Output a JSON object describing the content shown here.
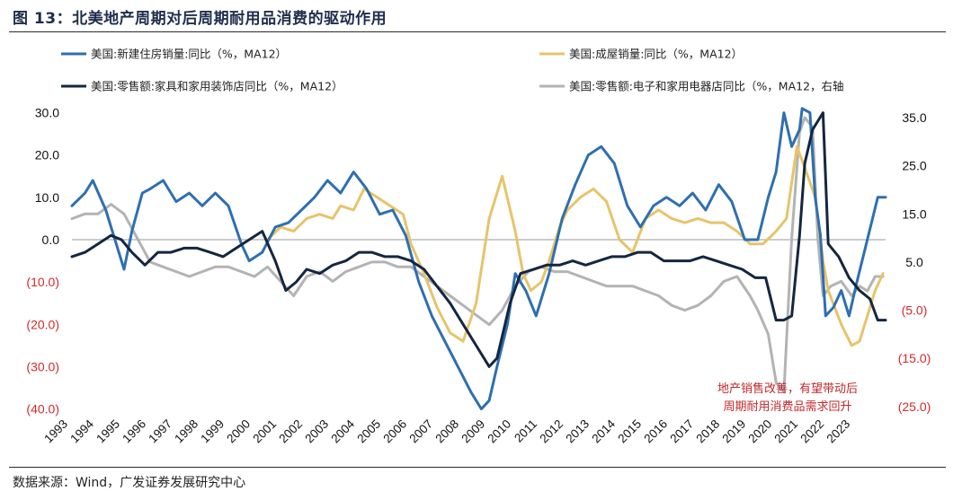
{
  "figure": {
    "title": "图 13：北美地产周期对后周期耐用品消费的驱动作用",
    "source": "数据来源：Wind，广发证券发展研究中心"
  },
  "chart_data": {
    "type": "line",
    "legend": [
      {
        "name": "美国:新建住房销量:同比（%，MA12）",
        "color": "#2e6fb0"
      },
      {
        "name": "美国:成屋销量:同比（%，MA12）",
        "color": "#e6c46a"
      },
      {
        "name": "美国:零售额:家具和家用装饰店同比（%，MA12）",
        "color": "#142640"
      },
      {
        "name": "美国:零售额:电子和家用电器店同比（%，MA12，右轴",
        "color": "#b3b3b3"
      }
    ],
    "left_axis": {
      "range": [
        -40,
        30
      ],
      "ticks": [
        30,
        20,
        10,
        0,
        -10,
        -20,
        -30,
        -40
      ],
      "labels": [
        "30.0",
        "20.0",
        "10.0",
        "0.0",
        "(10.0)",
        "(20.0)",
        "(30.0)",
        "(40.0)"
      ],
      "negative_color": "#d42a2a"
    },
    "right_axis": {
      "range": [
        -25,
        35
      ],
      "ticks": [
        35,
        25,
        15,
        5,
        -5,
        -15,
        -25
      ],
      "labels": [
        "35.0",
        "25.0",
        "15.0",
        "5.0",
        "(5.0)",
        "(15.0)",
        "(25.0)"
      ],
      "negative_color": "#d42a2a"
    },
    "x_range": [
      1993,
      2024.2
    ],
    "x_tick_labels": [
      "1993",
      "1994",
      "1995",
      "1996",
      "1997",
      "1998",
      "1999",
      "2000",
      "2001",
      "2002",
      "2003",
      "2004",
      "2005",
      "2006",
      "2007",
      "2008",
      "2009",
      "2010",
      "2011",
      "2012",
      "2013",
      "2014",
      "2015",
      "2016",
      "2017",
      "2018",
      "2019",
      "2020",
      "2021",
      "2022",
      "2023"
    ],
    "annotation": [
      "地产销售改善，有望带动后",
      "周期耐用消费品需求回升"
    ],
    "series": [
      {
        "name": "美国:新建住房销量:同比（%，MA12）",
        "axis": "left",
        "color": "#2e6fb0",
        "x": [
          1993.0,
          1993.5,
          1993.8,
          1994.3,
          1994.7,
          1995.0,
          1995.3,
          1995.7,
          1996.0,
          1996.5,
          1997.0,
          1997.5,
          1998.0,
          1998.5,
          1999.0,
          1999.5,
          1999.8,
          2000.3,
          2000.8,
          2001.3,
          2001.8,
          2002.3,
          2002.8,
          2003.3,
          2003.8,
          2004.3,
          2004.8,
          2005.3,
          2005.8,
          2006.3,
          2006.8,
          2007.3,
          2007.8,
          2008.3,
          2008.7,
          2009.0,
          2009.3,
          2009.7,
          2010.0,
          2010.4,
          2010.8,
          2011.3,
          2011.8,
          2012.3,
          2012.8,
          2013.3,
          2013.8,
          2014.3,
          2014.8,
          2015.3,
          2015.8,
          2016.3,
          2016.8,
          2017.3,
          2017.8,
          2018.3,
          2018.8,
          2019.3,
          2019.7,
          2020.0,
          2020.3,
          2020.6,
          2020.9,
          2021.0,
          2021.3,
          2021.5,
          2021.7,
          2021.9,
          2022.2,
          2022.5,
          2022.8,
          2023.1,
          2023.5,
          2023.9,
          2024.2
        ],
        "values": [
          8,
          11,
          14,
          7,
          -1,
          -7,
          2,
          11,
          12,
          14,
          9,
          11,
          8,
          11,
          8,
          -1,
          -5,
          -3,
          3,
          4,
          7,
          10,
          14,
          11,
          16,
          12,
          6,
          7,
          1,
          -10,
          -18,
          -24,
          -30,
          -36,
          -40,
          -38,
          -30,
          -20,
          -8,
          -12,
          -18,
          -8,
          5,
          13,
          20,
          22,
          18,
          8,
          3,
          8,
          10,
          8,
          11,
          7,
          13,
          9,
          0,
          0,
          10,
          16,
          30,
          22,
          26,
          31,
          30,
          10,
          1,
          -18,
          -16,
          -12,
          -18,
          -10,
          0,
          10,
          10
        ]
      },
      {
        "name": "美国:成屋销量:同比（%，MA12）",
        "axis": "left",
        "color": "#e6c46a",
        "x": [
          2000.5,
          2001.0,
          2001.5,
          2002.0,
          2002.5,
          2003.0,
          2003.3,
          2003.8,
          2004.2,
          2004.7,
          2005.2,
          2005.7,
          2006.0,
          2006.5,
          2007.0,
          2007.5,
          2008.0,
          2008.5,
          2009.0,
          2009.5,
          2010.0,
          2010.3,
          2010.6,
          2011.0,
          2011.3,
          2011.7,
          2012.0,
          2012.5,
          2013.0,
          2013.5,
          2014.0,
          2014.5,
          2015.0,
          2015.5,
          2016.0,
          2016.5,
          2017.0,
          2017.5,
          2018.0,
          2018.5,
          2019.0,
          2019.5,
          2020.0,
          2020.4,
          2020.8,
          2021.1,
          2021.5,
          2021.8,
          2022.0,
          2022.5,
          2022.9,
          2023.2,
          2023.5,
          2023.8,
          2024.1
        ],
        "values": [
          0,
          3,
          2,
          5,
          6,
          5,
          8,
          7,
          12,
          10,
          8,
          6,
          -1,
          -8,
          -16,
          -22,
          -24,
          -15,
          5,
          15,
          2,
          -8,
          -12,
          -10,
          -5,
          3,
          7,
          10,
          12,
          9,
          0,
          -3,
          5,
          7,
          5,
          4,
          5,
          4,
          4,
          2,
          -1,
          -1,
          2,
          5,
          22,
          17,
          10,
          -5,
          -12,
          -20,
          -25,
          -24,
          -18,
          -12,
          -8
        ]
      },
      {
        "name": "美国:零售额:家具和家用装饰店同比（%，MA12）",
        "axis": "left",
        "color": "#142640",
        "x": [
          1993.0,
          1993.5,
          1994.0,
          1994.5,
          1994.9,
          1995.3,
          1995.8,
          1996.3,
          1996.8,
          1997.3,
          1997.8,
          1998.3,
          1998.8,
          1999.3,
          1999.8,
          2000.3,
          2000.8,
          2001.2,
          2001.6,
          2002.0,
          2002.5,
          2003.0,
          2003.5,
          2004.0,
          2004.5,
          2005.0,
          2005.5,
          2006.0,
          2006.5,
          2007.0,
          2007.5,
          2008.0,
          2008.5,
          2009.0,
          2009.3,
          2009.8,
          2010.2,
          2010.7,
          2011.2,
          2011.7,
          2012.2,
          2012.7,
          2013.2,
          2013.7,
          2014.2,
          2014.7,
          2015.2,
          2015.7,
          2016.2,
          2016.7,
          2017.2,
          2017.7,
          2018.2,
          2018.7,
          2019.2,
          2019.6,
          2020.0,
          2020.3,
          2020.6,
          2020.9,
          2021.1,
          2021.4,
          2021.6,
          2021.8,
          2022.0,
          2022.4,
          2022.8,
          2023.2,
          2023.6,
          2023.9,
          2024.2
        ],
        "values": [
          -4,
          -3,
          -1,
          1,
          0,
          -3,
          -6,
          -3,
          -3,
          -2,
          -2,
          -3,
          -4,
          -2,
          0,
          2,
          -5,
          -12,
          -10,
          -7,
          -8,
          -6,
          -5,
          -3,
          -3,
          -4,
          -4,
          -5,
          -7,
          -11,
          -15,
          -20,
          -25,
          -30,
          -28,
          -15,
          -8,
          -7,
          -6,
          -6,
          -5,
          -6,
          -5,
          -4,
          -4,
          -3,
          -3,
          -5,
          -5,
          -5,
          -4,
          -5,
          -6,
          -7,
          -9,
          -9,
          -19,
          -19,
          -18,
          1,
          18,
          26,
          28,
          30,
          -1,
          -4,
          -9,
          -12,
          -14,
          -19,
          -19
        ]
      },
      {
        "name": "美国:零售额:电子和家用电器店同比（%，MA12，右轴",
        "axis": "right",
        "color": "#b3b3b3",
        "x": [
          1993.0,
          1993.5,
          1994.0,
          1994.5,
          1995.0,
          1995.5,
          1996.0,
          1996.5,
          1997.0,
          1997.5,
          1998.0,
          1998.5,
          1999.0,
          1999.5,
          2000.0,
          2000.5,
          2001.0,
          2001.5,
          2002.0,
          2002.5,
          2003.0,
          2003.5,
          2004.0,
          2004.5,
          2005.0,
          2005.5,
          2006.0,
          2006.5,
          2007.0,
          2007.5,
          2008.0,
          2008.5,
          2009.0,
          2009.5,
          2010.0,
          2010.5,
          2011.0,
          2011.5,
          2012.0,
          2012.5,
          2013.0,
          2013.5,
          2014.0,
          2014.5,
          2015.0,
          2015.5,
          2016.0,
          2016.5,
          2017.0,
          2017.5,
          2018.0,
          2018.5,
          2019.0,
          2019.3,
          2019.7,
          2020.0,
          2020.3,
          2020.6,
          2020.9,
          2021.1,
          2021.4,
          2021.6,
          2021.8,
          2022.1,
          2022.5,
          2022.9,
          2023.2,
          2023.5,
          2023.8,
          2024.1
        ],
        "values": [
          14,
          15,
          15,
          17,
          15,
          10,
          5,
          4,
          3,
          2,
          3,
          4,
          4,
          3,
          2,
          4,
          1,
          -2,
          2,
          3,
          1,
          3,
          4,
          5,
          5,
          4,
          4,
          2,
          0,
          -2,
          -4,
          -6,
          -8,
          -5,
          0,
          3,
          4,
          3,
          3,
          2,
          1,
          0,
          0,
          0,
          -1,
          -2,
          -4,
          -5,
          -4,
          -2,
          1,
          2,
          -2,
          -5,
          -10,
          -20,
          -22,
          10,
          32,
          35,
          33,
          10,
          -2,
          0,
          1,
          -2,
          0,
          -1,
          2,
          2
        ]
      }
    ]
  }
}
